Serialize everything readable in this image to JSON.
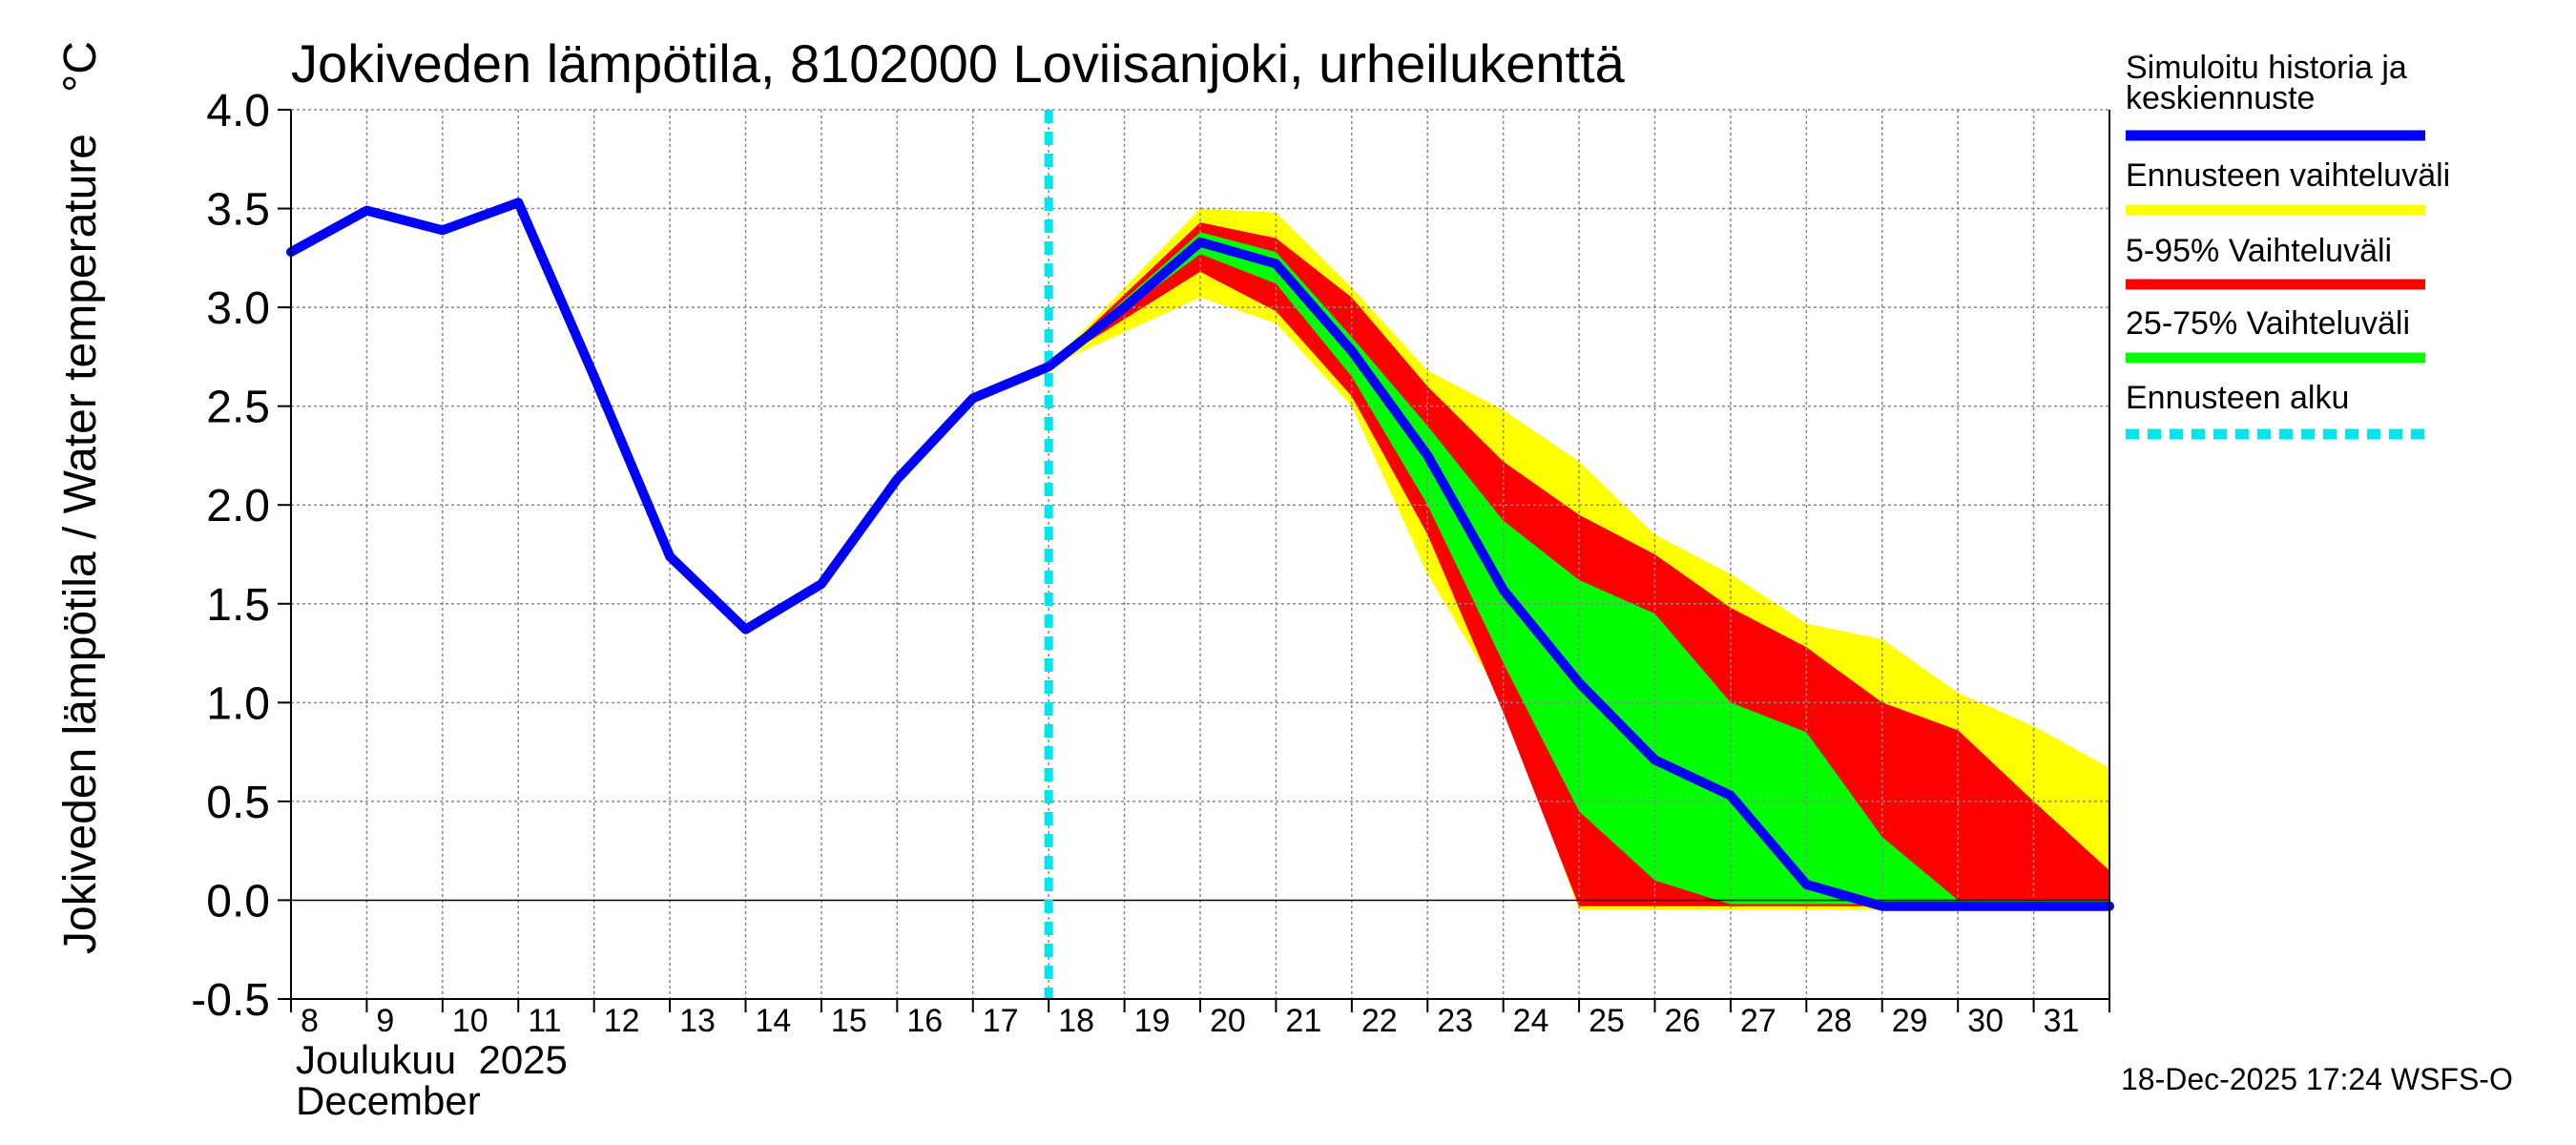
{
  "chart_data": {
    "type": "line",
    "title": "Jokiveden lämpötila, 8102000 Loviisanjoki, urheilukenttä",
    "ylabel": "Jokiveden lämpötila / Water temperature",
    "yunit": "°C",
    "ylim": [
      -0.5,
      4.0
    ],
    "yticks": [
      4.0,
      3.5,
      3.0,
      2.5,
      2.0,
      1.5,
      1.0,
      0.5,
      0.0,
      -0.5
    ],
    "ytick_labels": [
      "4.0",
      "3.5",
      "3.0",
      "2.5",
      "2.0",
      "1.5",
      "1.0",
      "0.5",
      "0.0",
      "-0.5"
    ],
    "xlim": [
      8,
      32
    ],
    "xticks": [
      8,
      9,
      10,
      11,
      12,
      13,
      14,
      15,
      16,
      17,
      18,
      19,
      20,
      21,
      22,
      23,
      24,
      25,
      26,
      27,
      28,
      29,
      30,
      31
    ],
    "xtick_labels": [
      "8",
      "9",
      "10",
      "11",
      "12",
      "13",
      "14",
      "15",
      "16",
      "17",
      "18",
      "19",
      "20",
      "21",
      "22",
      "23",
      "24",
      "25",
      "26",
      "27",
      "28",
      "29",
      "30",
      "31"
    ],
    "month_label_fi": "Joulukuu  2025",
    "month_label_en": "December",
    "grid": true,
    "forecast_start": 18,
    "colors": {
      "median": "#0000ff",
      "full_range": "#ffff00",
      "range_5_95": "#ff0000",
      "range_25_75": "#00ff00",
      "forecast_start": "#00e5ee",
      "grid": "#888888",
      "axis": "#000000"
    },
    "series": [
      {
        "name": "Ennusteen vaihteluväli",
        "kind": "band",
        "x": [
          18,
          20,
          21,
          22,
          23,
          24,
          25,
          26,
          27,
          28,
          29,
          30,
          31,
          32
        ],
        "upper": [
          2.7,
          3.5,
          3.48,
          3.1,
          2.68,
          2.48,
          2.22,
          1.85,
          1.65,
          1.4,
          1.32,
          1.05,
          0.88,
          0.67
        ],
        "lower": [
          2.7,
          3.05,
          2.92,
          2.5,
          1.65,
          1.0,
          -0.05,
          -0.05,
          -0.05,
          -0.05,
          -0.05,
          -0.05,
          -0.05,
          -0.05
        ]
      },
      {
        "name": "5-95% Vaihteluväli",
        "kind": "band",
        "x": [
          18,
          20,
          21,
          22,
          23,
          24,
          25,
          26,
          27,
          28,
          29,
          30,
          31,
          32
        ],
        "upper": [
          2.7,
          3.43,
          3.35,
          3.05,
          2.6,
          2.22,
          1.95,
          1.75,
          1.48,
          1.28,
          1.0,
          0.86,
          0.5,
          0.15
        ],
        "lower": [
          2.7,
          3.18,
          2.98,
          2.55,
          1.85,
          0.95,
          -0.03,
          -0.03,
          -0.03,
          -0.03,
          -0.03,
          -0.03,
          -0.03,
          -0.03
        ]
      },
      {
        "name": "25-75% Vaihteluväli",
        "kind": "band",
        "x": [
          18,
          20,
          21,
          22,
          23,
          24,
          25,
          26,
          27,
          28,
          29,
          30,
          31,
          32
        ],
        "upper": [
          2.7,
          3.38,
          3.28,
          2.85,
          2.4,
          1.92,
          1.62,
          1.45,
          1.0,
          0.85,
          0.32,
          0.0,
          0.0,
          0.0
        ],
        "lower": [
          2.7,
          3.27,
          3.12,
          2.65,
          2.0,
          1.2,
          0.45,
          0.1,
          -0.02,
          -0.02,
          -0.02,
          -0.02,
          -0.02,
          -0.02
        ]
      },
      {
        "name": "Simuloitu historia ja keskiennuste",
        "kind": "line",
        "x": [
          8,
          9,
          10,
          11,
          12,
          13,
          14,
          15,
          16,
          17,
          18,
          19,
          20,
          21,
          22,
          23,
          24,
          25,
          26,
          27,
          28,
          29,
          30,
          31,
          32
        ],
        "values": [
          3.28,
          3.49,
          3.39,
          3.53,
          2.65,
          1.74,
          1.37,
          1.6,
          2.13,
          2.54,
          2.7,
          3.0,
          3.33,
          3.22,
          2.78,
          2.25,
          1.57,
          1.1,
          0.71,
          0.53,
          0.08,
          -0.03,
          -0.03,
          -0.03,
          -0.03
        ]
      }
    ],
    "legend": [
      {
        "label_line1": "Simuloitu historia ja",
        "label_line2": "keskiennuste",
        "color": "#0000ff",
        "style": "solid"
      },
      {
        "label_line1": "Ennusteen vaihteluväli",
        "label_line2": "",
        "color": "#ffff00",
        "style": "solid"
      },
      {
        "label_line1": "5-95% Vaihteluväli",
        "label_line2": "",
        "color": "#ff0000",
        "style": "solid"
      },
      {
        "label_line1": "25-75% Vaihteluväli",
        "label_line2": "",
        "color": "#00ff00",
        "style": "solid"
      },
      {
        "label_line1": "Ennusteen alku",
        "label_line2": "",
        "color": "#00e5ee",
        "style": "dashed"
      }
    ],
    "footer": "18-Dec-2025 17:24 WSFS-O"
  }
}
